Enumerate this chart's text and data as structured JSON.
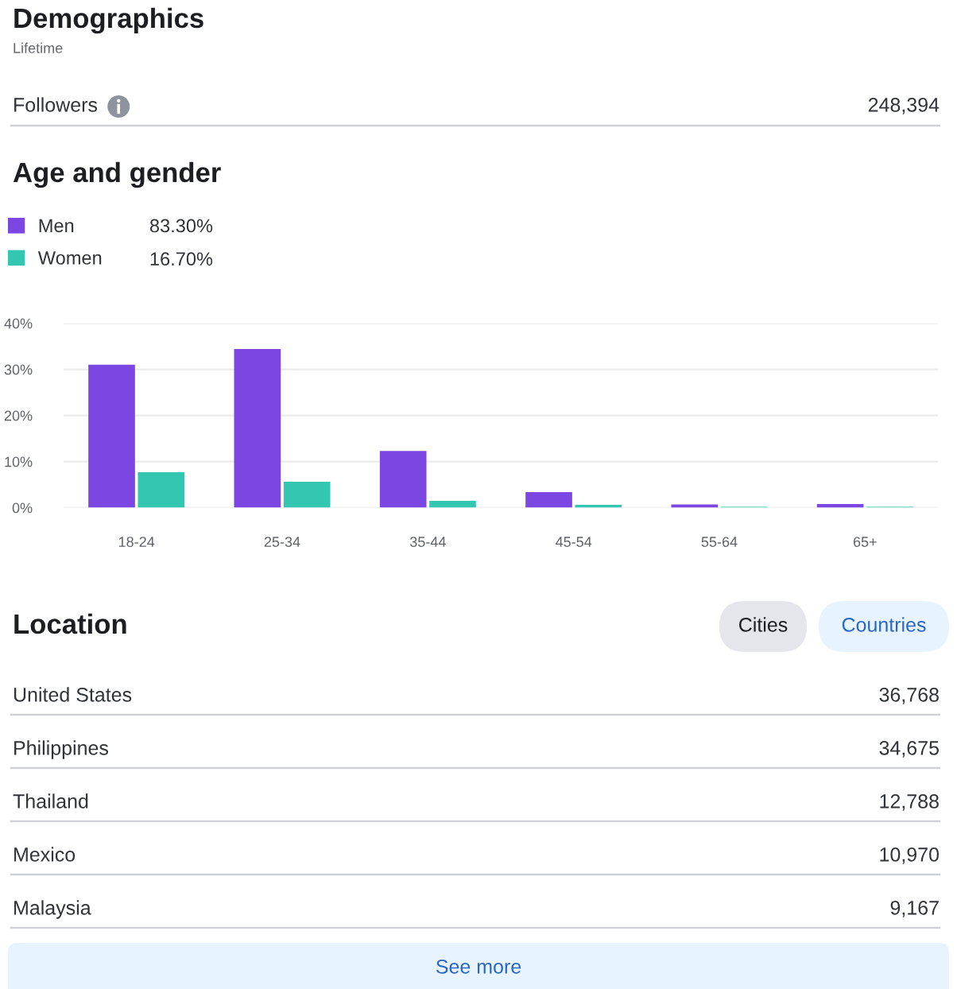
{
  "chart_data": [
    {
      "type": "other",
      "title": "Demographics",
      "subtitle": "Lifetime",
      "annotations": [
        "Followers",
        "248,394"
      ]
    },
    {
      "type": "bar",
      "title": "Age and gender",
      "categories": [
        "18-24",
        "25-34",
        "35-44",
        "45-54",
        "55-64",
        "65+"
      ],
      "series": [
        {
          "name": "Men",
          "color": "#7c46e2",
          "values": [
            31.0,
            34.4,
            12.3,
            3.4,
            0.7,
            0.8
          ]
        },
        {
          "name": "Women",
          "color": "#33c6b1",
          "values": [
            7.7,
            5.6,
            1.5,
            0.6,
            0.2,
            0.2
          ]
        }
      ],
      "annotations": [
        "83.30%",
        "16.70%"
      ],
      "ylim": [
        0,
        40
      ],
      "yticks": [
        {
          "value": 0,
          "label": "0%"
        },
        {
          "value": 10,
          "label": "10%"
        },
        {
          "value": 20,
          "label": "20%"
        },
        {
          "value": 30,
          "label": "30%"
        },
        {
          "value": 40,
          "label": "40%"
        }
      ],
      "grid": "y",
      "legend": "top left"
    },
    {
      "type": "other",
      "title": "Location",
      "annotations": [
        "Cities",
        "Countries",
        "United States",
        "36,768",
        "Philippines",
        "34,675",
        "Thailand",
        "12,788",
        "Mexico",
        "10,970",
        "Malaysia",
        "9,167",
        "See more"
      ]
    }
  ]
}
